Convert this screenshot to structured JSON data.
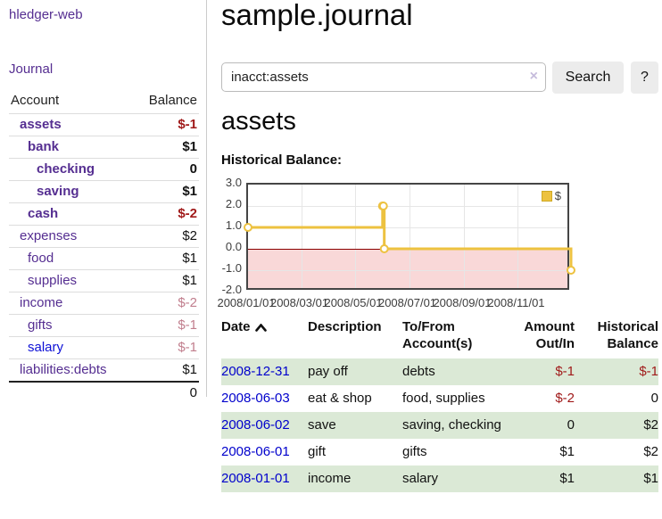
{
  "app_title": "hledger-web",
  "sidebar": {
    "journal_link": "Journal",
    "headers": {
      "account": "Account",
      "balance": "Balance"
    },
    "rows": [
      {
        "account": "assets",
        "balance": "$-1"
      },
      {
        "account": "bank",
        "balance": "$1"
      },
      {
        "account": "checking",
        "balance": "0"
      },
      {
        "account": "saving",
        "balance": "$1"
      },
      {
        "account": "cash",
        "balance": "$-2"
      },
      {
        "account": "expenses",
        "balance": "$2"
      },
      {
        "account": "food",
        "balance": "$1"
      },
      {
        "account": "supplies",
        "balance": "$1"
      },
      {
        "account": "income",
        "balance": "$-2"
      },
      {
        "account": "gifts",
        "balance": "$-1"
      },
      {
        "account": "salary",
        "balance": "$-1"
      },
      {
        "account": "liabilities:debts",
        "balance": "$1"
      }
    ],
    "total": "0"
  },
  "main": {
    "title": "sample.journal",
    "search": {
      "value": "inacct:assets",
      "clear_icon": "×",
      "search_button": "Search",
      "help_button": "?"
    },
    "account_heading": "assets",
    "chart_label": "Historical Balance:"
  },
  "chart_data": {
    "type": "line",
    "step": true,
    "title": "Historical Balance:",
    "legend": {
      "label": "$",
      "position": "top-right"
    },
    "x_range": [
      "2008-01-01",
      "2008-12-31"
    ],
    "ylim": [
      -2,
      3
    ],
    "x_ticks": [
      "2008/01/01",
      "2008/03/01",
      "2008/05/01",
      "2008/07/01",
      "2008/09/01",
      "2008/11/01"
    ],
    "y_ticks": [
      "3.0",
      "2.0",
      "1.0",
      "0.0",
      "-1.0",
      "-2.0"
    ],
    "series": [
      {
        "name": "$",
        "color": "#edc240",
        "points": [
          {
            "x": "2008-01-01",
            "y": 1
          },
          {
            "x": "2008-06-01",
            "y": 2
          },
          {
            "x": "2008-06-02",
            "y": 2
          },
          {
            "x": "2008-06-03",
            "y": 0
          },
          {
            "x": "2008-12-31",
            "y": -1
          }
        ]
      }
    ],
    "colors": {
      "negative_region": "#f9d8d8",
      "zero_line": "#8b0000",
      "grid": "#e6e6e6",
      "border": "#454545"
    }
  },
  "register": {
    "headers": {
      "date": "Date",
      "description": "Description",
      "accounts": "To/From Account(s)",
      "amount": "Amount Out/In",
      "balance": "Historical Balance"
    },
    "rows": [
      {
        "date": "2008-12-31",
        "description": "pay off",
        "accounts": "debts",
        "amount": "$-1",
        "balance": "$-1"
      },
      {
        "date": "2008-06-03",
        "description": "eat & shop",
        "accounts": "food, supplies",
        "amount": "$-2",
        "balance": "0"
      },
      {
        "date": "2008-06-02",
        "description": "save",
        "accounts": "saving, checking",
        "amount": "0",
        "balance": "$2"
      },
      {
        "date": "2008-06-01",
        "description": "gift",
        "accounts": "gifts",
        "amount": "$1",
        "balance": "$2"
      },
      {
        "date": "2008-01-01",
        "description": "income",
        "accounts": "salary",
        "amount": "$1",
        "balance": "$1"
      }
    ]
  }
}
